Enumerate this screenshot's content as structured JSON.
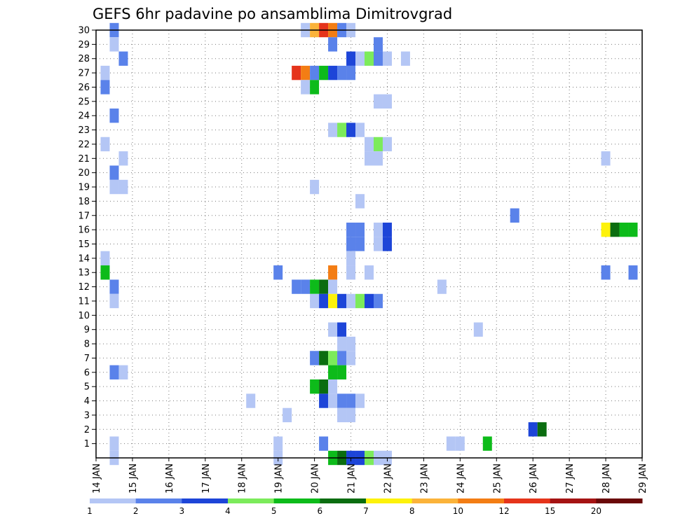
{
  "chart_data": {
    "type": "heatmap",
    "title": "GEFS 6hr padavine po ansamblima Dimitrovgrad",
    "xlabel": "",
    "ylabel": "",
    "x_ticks": [
      "14 JAN",
      "15 JAN",
      "16 JAN",
      "17 JAN",
      "18 JAN",
      "19 JAN",
      "20 JAN",
      "21 JAN",
      "22 JAN",
      "23 JAN",
      "24 JAN",
      "25 JAN",
      "26 JAN",
      "27 JAN",
      "28 JAN",
      "29 JAN"
    ],
    "y_ticks": [
      1,
      2,
      3,
      4,
      5,
      6,
      7,
      8,
      9,
      10,
      11,
      12,
      13,
      14,
      15,
      16,
      17,
      18,
      19,
      20,
      21,
      22,
      23,
      24,
      25,
      26,
      27,
      28,
      29,
      30
    ],
    "x_range_days": [
      0,
      15
    ],
    "y_range": [
      0,
      30
    ],
    "step_hours": 6,
    "grid": true,
    "colorbar": {
      "labels": [
        "1",
        "2",
        "3",
        "4",
        "5",
        "6",
        "7",
        "8",
        "10",
        "12",
        "15",
        "20"
      ],
      "colors": [
        "#b4c6f5",
        "#5a82ea",
        "#1d45d8",
        "#7ceb5b",
        "#0dbb1a",
        "#0b6d10",
        "#fdf20b",
        "#fbb33a",
        "#f37d14",
        "#e5341b",
        "#a51313",
        "#6a0808"
      ]
    },
    "cells": [
      {
        "t": 0.5,
        "m": 30,
        "v": 2
      },
      {
        "t": 0.5,
        "m": 29,
        "v": 1
      },
      {
        "t": 0.75,
        "m": 28,
        "v": 2
      },
      {
        "t": 0.25,
        "m": 27,
        "v": 1
      },
      {
        "t": 0.25,
        "m": 26,
        "v": 2
      },
      {
        "t": 0.5,
        "m": 24,
        "v": 2
      },
      {
        "t": 0.25,
        "m": 22,
        "v": 1
      },
      {
        "t": 0.75,
        "m": 21,
        "v": 1
      },
      {
        "t": 0.5,
        "m": 20,
        "v": 2
      },
      {
        "t": 0.5,
        "m": 19,
        "v": 1
      },
      {
        "t": 0.75,
        "m": 19,
        "v": 1
      },
      {
        "t": 0.25,
        "m": 14,
        "v": 1
      },
      {
        "t": 0.25,
        "m": 13,
        "v": 5
      },
      {
        "t": 0.5,
        "m": 12,
        "v": 2
      },
      {
        "t": 0.5,
        "m": 11,
        "v": 1
      },
      {
        "t": 0.5,
        "m": 6,
        "v": 2
      },
      {
        "t": 0.75,
        "m": 6,
        "v": 1
      },
      {
        "t": 0.5,
        "m": 1,
        "v": 1
      },
      {
        "t": 0.5,
        "m": 0,
        "v": 1
      },
      {
        "t": 4.25,
        "m": 4,
        "v": 1
      },
      {
        "t": 5.0,
        "m": 13,
        "v": 2
      },
      {
        "t": 5.0,
        "m": 1,
        "v": 1
      },
      {
        "t": 5.0,
        "m": 0,
        "v": 1
      },
      {
        "t": 5.25,
        "m": 3,
        "v": 1
      },
      {
        "t": 5.5,
        "m": 27,
        "v": 10
      },
      {
        "t": 5.75,
        "m": 27,
        "v": 9
      },
      {
        "t": 5.5,
        "m": 12,
        "v": 2
      },
      {
        "t": 5.75,
        "m": 12,
        "v": 2
      },
      {
        "t": 5.75,
        "m": 30,
        "v": 1
      },
      {
        "t": 6.0,
        "m": 30,
        "v": 8
      },
      {
        "t": 6.25,
        "m": 30,
        "v": 10
      },
      {
        "t": 6.5,
        "m": 30,
        "v": 9
      },
      {
        "t": 6.75,
        "m": 30,
        "v": 2
      },
      {
        "t": 7.0,
        "m": 30,
        "v": 1
      },
      {
        "t": 6.5,
        "m": 29,
        "v": 2
      },
      {
        "t": 7.0,
        "m": 28,
        "v": 3
      },
      {
        "t": 7.25,
        "m": 28,
        "v": 1
      },
      {
        "t": 7.5,
        "m": 28,
        "v": 4
      },
      {
        "t": 7.75,
        "m": 28,
        "v": 2
      },
      {
        "t": 8.0,
        "m": 28,
        "v": 1
      },
      {
        "t": 8.5,
        "m": 28,
        "v": 1
      },
      {
        "t": 7.75,
        "m": 29,
        "v": 2
      },
      {
        "t": 6.0,
        "m": 27,
        "v": 2
      },
      {
        "t": 6.25,
        "m": 27,
        "v": 5
      },
      {
        "t": 6.5,
        "m": 27,
        "v": 3
      },
      {
        "t": 6.75,
        "m": 27,
        "v": 2
      },
      {
        "t": 7.0,
        "m": 27,
        "v": 2
      },
      {
        "t": 5.75,
        "m": 26,
        "v": 1
      },
      {
        "t": 6.0,
        "m": 26,
        "v": 5
      },
      {
        "t": 7.75,
        "m": 25,
        "v": 1
      },
      {
        "t": 8.0,
        "m": 25,
        "v": 1
      },
      {
        "t": 6.5,
        "m": 23,
        "v": 1
      },
      {
        "t": 6.75,
        "m": 23,
        "v": 4
      },
      {
        "t": 7.0,
        "m": 23,
        "v": 3
      },
      {
        "t": 7.25,
        "m": 23,
        "v": 1
      },
      {
        "t": 7.5,
        "m": 22,
        "v": 1
      },
      {
        "t": 7.75,
        "m": 22,
        "v": 4
      },
      {
        "t": 8.0,
        "m": 22,
        "v": 1
      },
      {
        "t": 7.5,
        "m": 21,
        "v": 1
      },
      {
        "t": 7.75,
        "m": 21,
        "v": 1
      },
      {
        "t": 6.0,
        "m": 19,
        "v": 1
      },
      {
        "t": 7.25,
        "m": 18,
        "v": 1
      },
      {
        "t": 7.0,
        "m": 16,
        "v": 2
      },
      {
        "t": 7.25,
        "m": 16,
        "v": 2
      },
      {
        "t": 7.75,
        "m": 16,
        "v": 1
      },
      {
        "t": 8.0,
        "m": 16,
        "v": 3
      },
      {
        "t": 7.0,
        "m": 15,
        "v": 2
      },
      {
        "t": 7.25,
        "m": 15,
        "v": 2
      },
      {
        "t": 7.75,
        "m": 15,
        "v": 1
      },
      {
        "t": 8.0,
        "m": 15,
        "v": 3
      },
      {
        "t": 7.0,
        "m": 14,
        "v": 1
      },
      {
        "t": 6.5,
        "m": 13,
        "v": 9
      },
      {
        "t": 7.0,
        "m": 13,
        "v": 1
      },
      {
        "t": 7.5,
        "m": 13,
        "v": 1
      },
      {
        "t": 6.0,
        "m": 12,
        "v": 5
      },
      {
        "t": 6.25,
        "m": 12,
        "v": 6
      },
      {
        "t": 6.5,
        "m": 12,
        "v": 1
      },
      {
        "t": 6.0,
        "m": 11,
        "v": 1
      },
      {
        "t": 6.25,
        "m": 11,
        "v": 3
      },
      {
        "t": 6.5,
        "m": 11,
        "v": 7
      },
      {
        "t": 6.75,
        "m": 11,
        "v": 3
      },
      {
        "t": 7.0,
        "m": 11,
        "v": 1
      },
      {
        "t": 7.25,
        "m": 11,
        "v": 4
      },
      {
        "t": 7.5,
        "m": 11,
        "v": 3
      },
      {
        "t": 7.75,
        "m": 11,
        "v": 2
      },
      {
        "t": 6.5,
        "m": 9,
        "v": 1
      },
      {
        "t": 6.75,
        "m": 9,
        "v": 3
      },
      {
        "t": 6.75,
        "m": 8,
        "v": 1
      },
      {
        "t": 7.0,
        "m": 8,
        "v": 1
      },
      {
        "t": 6.0,
        "m": 7,
        "v": 2
      },
      {
        "t": 6.25,
        "m": 7,
        "v": 6
      },
      {
        "t": 6.5,
        "m": 7,
        "v": 4
      },
      {
        "t": 6.75,
        "m": 7,
        "v": 2
      },
      {
        "t": 7.0,
        "m": 7,
        "v": 1
      },
      {
        "t": 6.5,
        "m": 6,
        "v": 5
      },
      {
        "t": 6.75,
        "m": 6,
        "v": 5
      },
      {
        "t": 6.0,
        "m": 5,
        "v": 5
      },
      {
        "t": 6.25,
        "m": 5,
        "v": 6
      },
      {
        "t": 6.5,
        "m": 5,
        "v": 1
      },
      {
        "t": 6.25,
        "m": 4,
        "v": 3
      },
      {
        "t": 6.5,
        "m": 4,
        "v": 1
      },
      {
        "t": 6.75,
        "m": 4,
        "v": 2
      },
      {
        "t": 7.0,
        "m": 4,
        "v": 2
      },
      {
        "t": 7.25,
        "m": 4,
        "v": 1
      },
      {
        "t": 6.75,
        "m": 3,
        "v": 1
      },
      {
        "t": 7.0,
        "m": 3,
        "v": 1
      },
      {
        "t": 6.25,
        "m": 1,
        "v": 2
      },
      {
        "t": 6.5,
        "m": 0,
        "v": 5
      },
      {
        "t": 6.75,
        "m": 0,
        "v": 6
      },
      {
        "t": 7.0,
        "m": 0,
        "v": 3
      },
      {
        "t": 7.25,
        "m": 0,
        "v": 3
      },
      {
        "t": 7.5,
        "m": 0,
        "v": 4
      },
      {
        "t": 7.75,
        "m": 0,
        "v": 1
      },
      {
        "t": 8.0,
        "m": 0,
        "v": 1
      },
      {
        "t": 9.5,
        "m": 12,
        "v": 1
      },
      {
        "t": 10.5,
        "m": 9,
        "v": 1
      },
      {
        "t": 11.5,
        "m": 17,
        "v": 2
      },
      {
        "t": 9.75,
        "m": 1,
        "v": 1
      },
      {
        "t": 10.0,
        "m": 1,
        "v": 1
      },
      {
        "t": 10.75,
        "m": 1,
        "v": 5
      },
      {
        "t": 12.0,
        "m": 2,
        "v": 3
      },
      {
        "t": 12.25,
        "m": 2,
        "v": 6
      },
      {
        "t": 14.0,
        "m": 21,
        "v": 1
      },
      {
        "t": 14.0,
        "m": 16,
        "v": 7
      },
      {
        "t": 14.25,
        "m": 16,
        "v": 6
      },
      {
        "t": 14.5,
        "m": 16,
        "v": 5
      },
      {
        "t": 14.75,
        "m": 16,
        "v": 5
      },
      {
        "t": 14.0,
        "m": 13,
        "v": 2
      },
      {
        "t": 14.75,
        "m": 13,
        "v": 2
      }
    ]
  }
}
